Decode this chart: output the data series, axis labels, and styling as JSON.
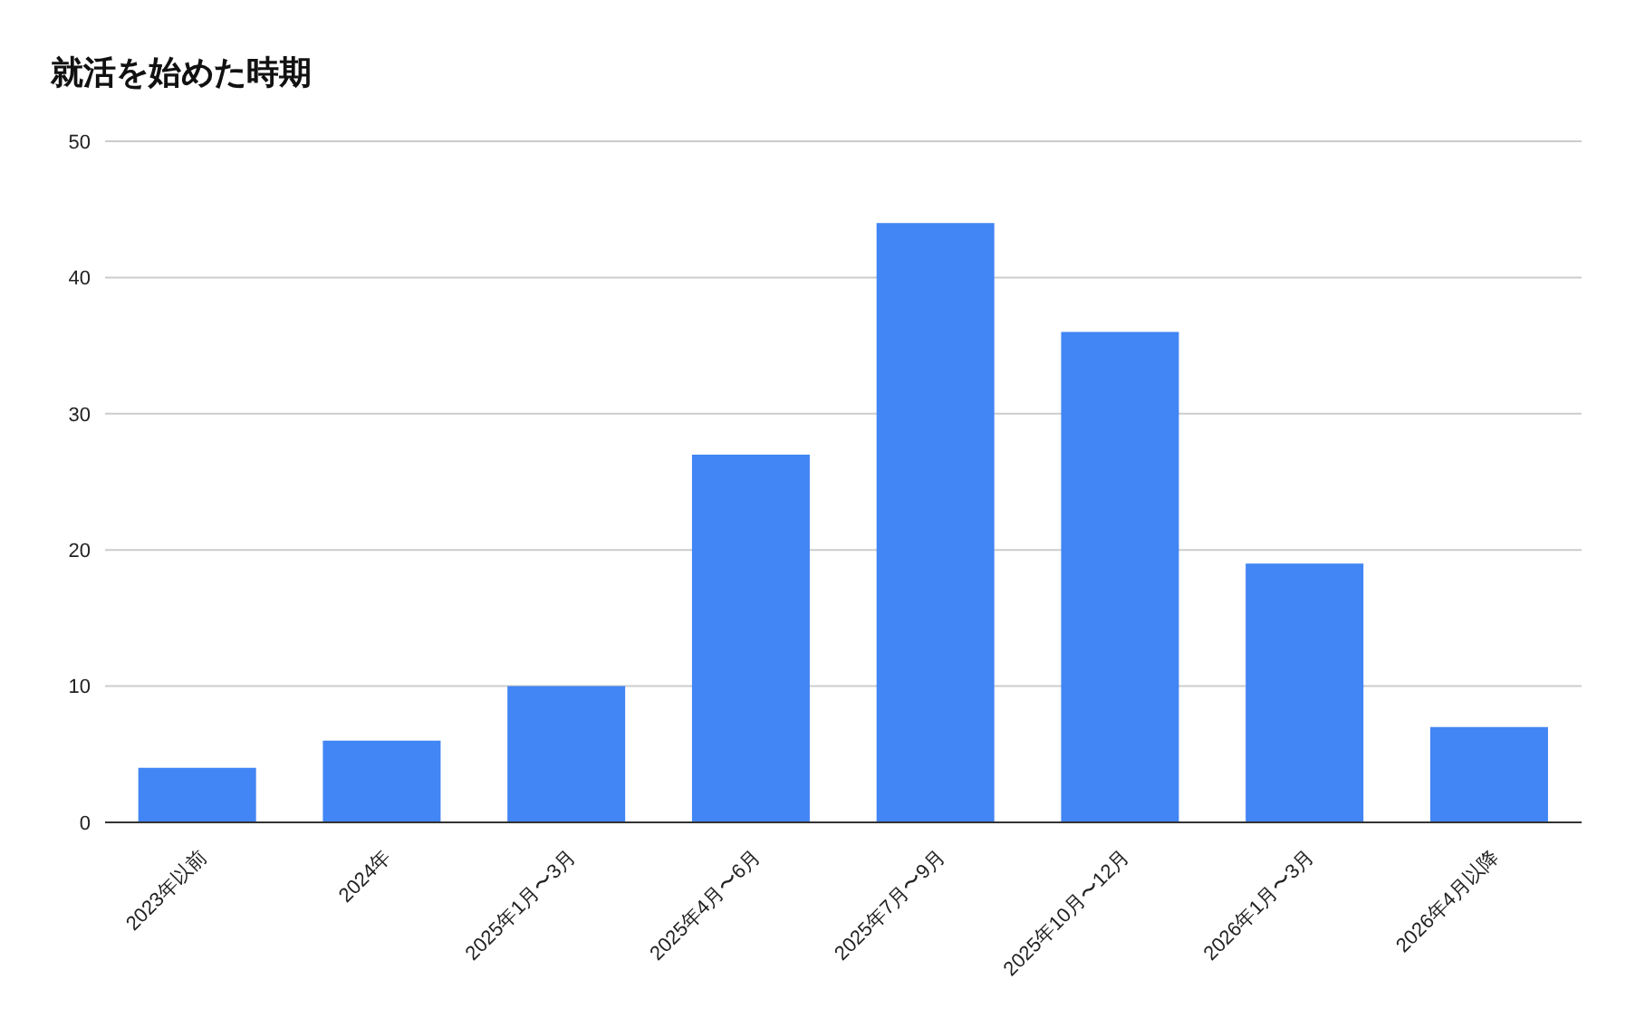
{
  "chart_data": {
    "type": "bar",
    "title": "就活を始めた時期",
    "categories": [
      "2023年以前",
      "2024年",
      "2025年1月〜3月",
      "2025年4月〜6月",
      "2025年7月〜9月",
      "2025年10月〜12月",
      "2026年1月〜3月",
      "2026年4月以降"
    ],
    "values": [
      4,
      6,
      10,
      27,
      44,
      36,
      19,
      7
    ],
    "color": "#4285f4",
    "ylim": [
      0,
      50
    ],
    "yticks": [
      0,
      10,
      20,
      30,
      40,
      50
    ],
    "grid": "y"
  }
}
